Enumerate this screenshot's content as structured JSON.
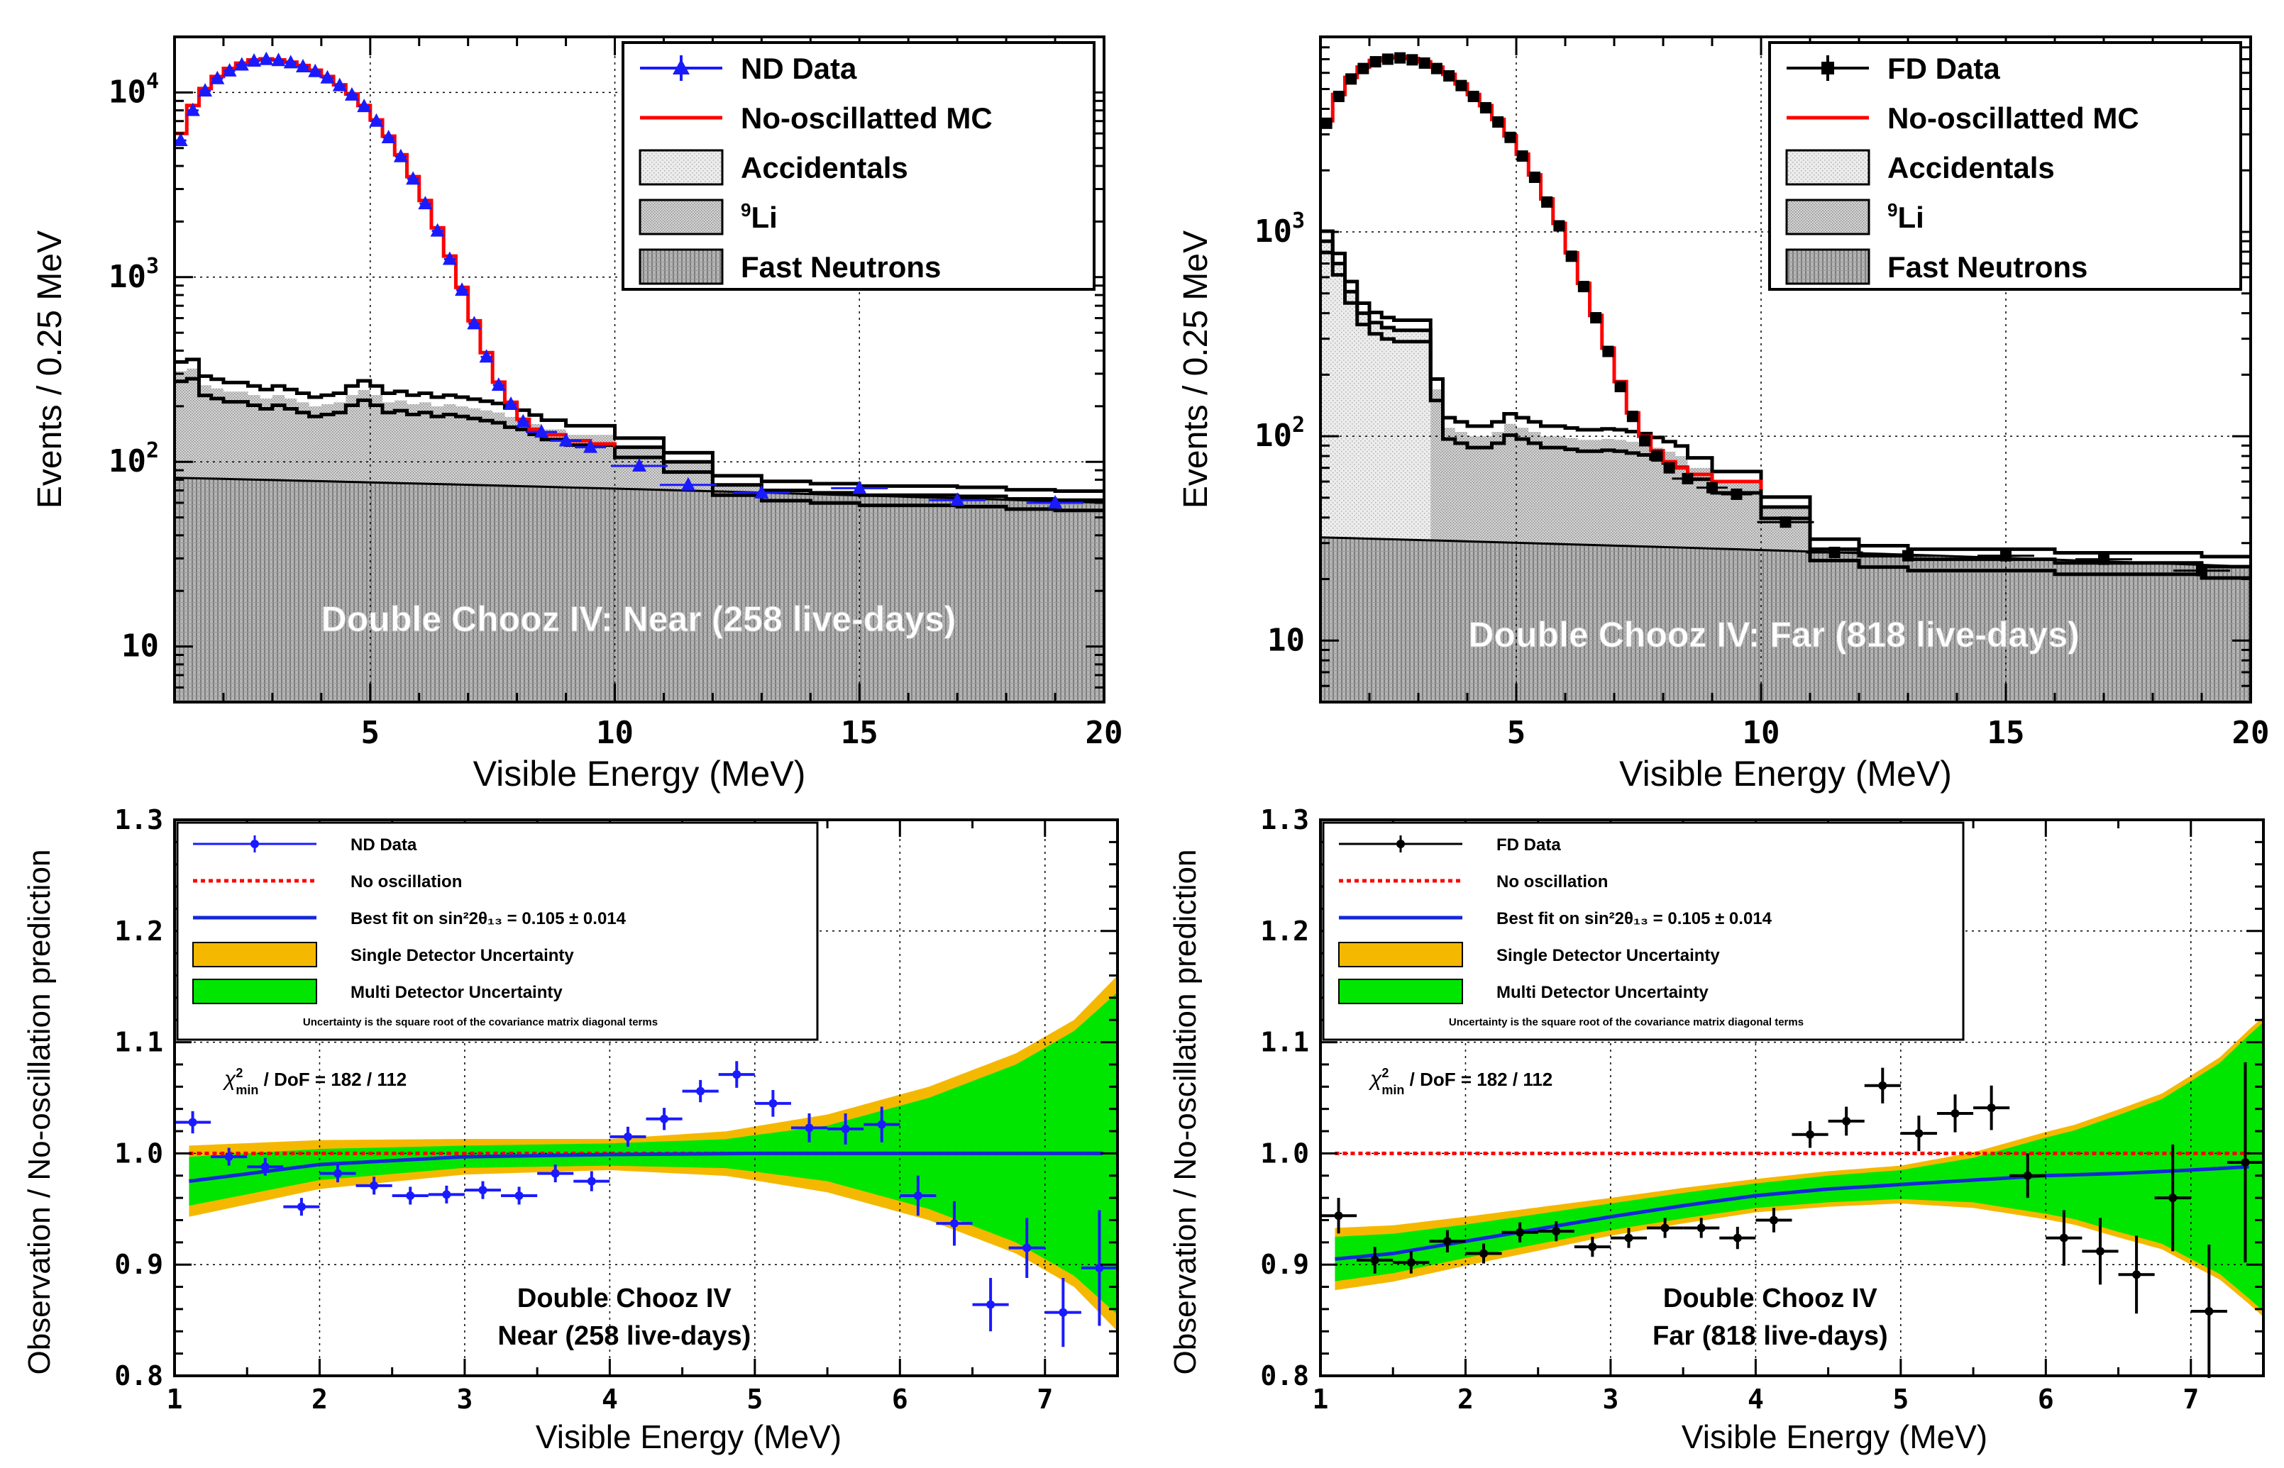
{
  "colors": {
    "nd": "#1a1aff",
    "fd": "#000000",
    "mc_red": "#ff0000",
    "fit_blue": "#1428d8",
    "single_unc": "#f5b800",
    "multi_unc": "#00e600",
    "acc_fill": "#ececec",
    "li_fill": "#c8c8c8",
    "fn_fill": "#a4a4a4",
    "grid": "#000000"
  },
  "chart_data": [
    {
      "id": "near-spectrum",
      "type": "line",
      "ylabel": "Events / 0.25 MeV",
      "xlabel": "Visible Energy (MeV)",
      "xlim": [
        1,
        20
      ],
      "ylim": [
        5,
        20000
      ],
      "log_y": true,
      "x_ticks": [
        "5",
        "10",
        "15",
        "20"
      ],
      "y_ticks": [
        "10",
        "10",
        "10",
        "10"
      ],
      "y_tick_exp": [
        "",
        "2",
        "3",
        "4"
      ],
      "annotation": "Double Chooz IV: Near (258 live-days)",
      "legend": [
        {
          "label": "ND Data",
          "kind": "data"
        },
        {
          "label": "No-oscillatted MC",
          "kind": "mc"
        },
        {
          "label": "Accidentals",
          "kind": "acc"
        },
        {
          "label": "Li",
          "sup": "9",
          "kind": "li"
        },
        {
          "label": "Fast Neutrons",
          "kind": "fn"
        }
      ],
      "fn_line": {
        "x": [
          1,
          20
        ],
        "y": [
          82,
          60
        ]
      },
      "bkg_total": {
        "x": [
          1,
          1.25,
          1.5,
          1.75,
          2,
          2.25,
          2.5,
          2.75,
          3,
          3.25,
          3.5,
          3.75,
          4,
          4.25,
          4.5,
          4.75,
          5,
          5.25,
          5.5,
          5.75,
          6,
          6.25,
          6.5,
          6.75,
          7,
          7.25,
          7.5,
          7.75,
          8,
          8.25,
          8.5,
          9,
          10,
          11,
          12,
          13,
          14,
          15,
          16,
          17,
          18,
          19,
          20
        ],
        "y": [
          310,
          320,
          260,
          250,
          240,
          240,
          230,
          220,
          230,
          220,
          210,
          200,
          205,
          210,
          230,
          245,
          230,
          210,
          215,
          205,
          210,
          200,
          205,
          200,
          195,
          190,
          185,
          175,
          170,
          160,
          150,
          140,
          120,
          100,
          75,
          70,
          68,
          66,
          66,
          65,
          63,
          62,
          61
        ]
      },
      "mc": {
        "x": [
          1,
          1.25,
          1.5,
          1.75,
          2,
          2.25,
          2.5,
          2.75,
          3,
          3.25,
          3.5,
          3.75,
          4,
          4.25,
          4.5,
          4.75,
          5,
          5.25,
          5.5,
          5.75,
          6,
          6.25,
          6.5,
          6.75,
          7,
          7.25,
          7.5,
          7.75,
          8,
          8.25,
          8.5,
          9,
          9.5,
          10
        ],
        "y": [
          6000,
          8500,
          10500,
          12200,
          13500,
          14400,
          15000,
          15200,
          15000,
          14600,
          14000,
          13200,
          12200,
          11000,
          9800,
          8500,
          7100,
          5800,
          4600,
          3500,
          2600,
          1850,
          1300,
          880,
          580,
          390,
          270,
          210,
          170,
          150,
          140,
          130,
          125,
          120
        ]
      },
      "data": {
        "x": [
          1.125,
          1.375,
          1.625,
          1.875,
          2.125,
          2.375,
          2.625,
          2.875,
          3.125,
          3.375,
          3.625,
          3.875,
          4.125,
          4.375,
          4.625,
          4.875,
          5.125,
          5.375,
          5.625,
          5.875,
          6.125,
          6.375,
          6.625,
          6.875,
          7.125,
          7.375,
          7.625,
          7.875,
          8.125,
          8.5,
          9,
          9.5,
          10.5,
          11.5,
          13,
          15,
          17,
          19
        ],
        "y": [
          5500,
          8000,
          10200,
          11900,
          13100,
          14100,
          14800,
          15100,
          14900,
          14500,
          13800,
          13000,
          12000,
          10900,
          9700,
          8400,
          7000,
          5700,
          4500,
          3400,
          2500,
          1780,
          1250,
          850,
          560,
          370,
          260,
          205,
          165,
          145,
          130,
          120,
          95,
          75,
          68,
          72,
          62,
          60
        ]
      }
    },
    {
      "id": "far-spectrum",
      "type": "line",
      "ylabel": "Events / 0.25 MeV",
      "xlabel": "Visible Energy (MeV)",
      "xlim": [
        1,
        20
      ],
      "ylim": [
        5,
        9000
      ],
      "log_y": true,
      "x_ticks": [
        "5",
        "10",
        "15",
        "20"
      ],
      "y_ticks": [
        "10",
        "10",
        "10"
      ],
      "y_tick_exp": [
        "",
        "2",
        "3"
      ],
      "annotation": "Double Chooz IV: Far (818 live-days)",
      "legend": [
        {
          "label": "FD Data",
          "kind": "data"
        },
        {
          "label": "No-oscillatted MC",
          "kind": "mc"
        },
        {
          "label": "Accidentals",
          "kind": "acc"
        },
        {
          "label": "Li",
          "sup": "9",
          "kind": "li"
        },
        {
          "label": "Fast Neutrons",
          "kind": "fn"
        }
      ],
      "fn_line": {
        "x": [
          1,
          20
        ],
        "y": [
          32,
          23
        ]
      },
      "acc_total": {
        "x": [
          1,
          1.25,
          1.5,
          1.75,
          2,
          2.25,
          2.5,
          2.75,
          3,
          3.25
        ],
        "y": [
          900,
          700,
          510,
          400,
          360,
          340,
          330,
          330,
          330,
          170
        ]
      },
      "bkg_total": {
        "x": [
          1,
          1.25,
          1.5,
          1.75,
          2,
          2.25,
          2.5,
          2.75,
          3,
          3.25,
          3.5,
          3.75,
          4,
          4.25,
          4.5,
          4.75,
          5,
          5.25,
          5.5,
          5.75,
          6,
          6.25,
          6.5,
          6.75,
          7,
          7.25,
          7.5,
          7.75,
          8,
          8.25,
          8.5,
          9,
          10,
          11,
          12,
          13,
          14,
          15,
          16,
          17,
          18,
          19,
          20
        ],
        "y": [
          900,
          700,
          510,
          400,
          360,
          340,
          330,
          330,
          330,
          170,
          110,
          105,
          100,
          100,
          105,
          115,
          110,
          105,
          100,
          100,
          98,
          96,
          96,
          97,
          96,
          94,
          92,
          88,
          84,
          80,
          70,
          60,
          45,
          28,
          26,
          25,
          25,
          25,
          24,
          24,
          24,
          23,
          23
        ]
      },
      "mc": {
        "x": [
          1,
          1.25,
          1.5,
          1.75,
          2,
          2.25,
          2.5,
          2.75,
          3,
          3.25,
          3.5,
          3.75,
          4,
          4.25,
          4.5,
          4.75,
          5,
          5.25,
          5.5,
          5.75,
          6,
          6.25,
          6.5,
          6.75,
          7,
          7.25,
          7.5,
          7.75,
          8,
          8.25,
          8.5,
          9,
          10
        ],
        "y": [
          3500,
          4700,
          5700,
          6400,
          6900,
          7100,
          7200,
          7050,
          6800,
          6400,
          5900,
          5300,
          4700,
          4150,
          3550,
          2950,
          2400,
          1900,
          1450,
          1100,
          790,
          560,
          390,
          270,
          185,
          130,
          100,
          85,
          75,
          70,
          65,
          60,
          55
        ]
      },
      "data": {
        "x": [
          1.125,
          1.375,
          1.625,
          1.875,
          2.125,
          2.375,
          2.625,
          2.875,
          3.125,
          3.375,
          3.625,
          3.875,
          4.125,
          4.375,
          4.625,
          4.875,
          5.125,
          5.375,
          5.625,
          5.875,
          6.125,
          6.375,
          6.625,
          6.875,
          7.125,
          7.375,
          7.625,
          7.875,
          8.125,
          8.5,
          9,
          9.5,
          10.5,
          11.5,
          13,
          15,
          17,
          19
        ],
        "y": [
          3400,
          4600,
          5600,
          6300,
          6800,
          7000,
          7100,
          6950,
          6700,
          6300,
          5800,
          5200,
          4600,
          4050,
          3450,
          2900,
          2350,
          1850,
          1400,
          1070,
          760,
          540,
          380,
          260,
          175,
          125,
          95,
          80,
          70,
          62,
          56,
          52,
          38,
          27,
          26,
          26,
          25,
          22
        ]
      }
    },
    {
      "id": "near-ratio",
      "type": "scatter",
      "ylabel": "Observation / No-oscillation prediction",
      "xlabel": "Visible Energy (MeV)",
      "xlim": [
        1,
        7.5
      ],
      "ylim": [
        0.8,
        1.3
      ],
      "x_ticks": [
        "1",
        "2",
        "3",
        "4",
        "5",
        "6",
        "7"
      ],
      "y_ticks": [
        "0.8",
        "0.9",
        "1.0",
        "1.1",
        "1.2",
        "1.3"
      ],
      "annotation_line1": "Double Chooz IV",
      "annotation_line2": "Near (258 live-days)",
      "chi2_label": "χ²min / DoF = 182 / 112",
      "chi2_main": "χ",
      "chi2_sup": "2",
      "chi2_sub": "min",
      "chi2_rest": " / DoF = 182 / 112",
      "legend": [
        {
          "label": "ND Data",
          "kind": "data"
        },
        {
          "label": "No oscillation",
          "kind": "noosc"
        },
        {
          "label": "Best fit on sin²2θ₁₃ = 0.105 ± 0.014",
          "kind": "fit"
        },
        {
          "label": "Single Detector Uncertainty",
          "kind": "single"
        },
        {
          "label": "Multi Detector Uncertainty",
          "kind": "multi"
        }
      ],
      "legend_note": "Uncertainty is the square root of the covariance matrix diagonal terms",
      "fit": {
        "x": [
          1.1,
          2,
          3,
          4,
          5,
          6,
          7.4
        ],
        "y": [
          0.975,
          0.99,
          0.997,
          0.999,
          1.0,
          1.0,
          1.0
        ]
      },
      "single_half": {
        "x": [
          1.1,
          2,
          3,
          4,
          4.8,
          5.5,
          6.2,
          6.8,
          7.2,
          7.5
        ],
        "y": [
          0.032,
          0.022,
          0.016,
          0.014,
          0.02,
          0.035,
          0.06,
          0.09,
          0.12,
          0.16
        ]
      },
      "multi_half": {
        "x": [
          1.1,
          2,
          3,
          4,
          4.8,
          5.5,
          6.2,
          6.8,
          7.2,
          7.5
        ],
        "y": [
          0.022,
          0.014,
          0.01,
          0.01,
          0.013,
          0.025,
          0.05,
          0.08,
          0.11,
          0.145
        ]
      },
      "points": {
        "x": [
          1.125,
          1.375,
          1.625,
          1.875,
          2.125,
          2.375,
          2.625,
          2.875,
          3.125,
          3.375,
          3.625,
          3.875,
          4.125,
          4.375,
          4.625,
          4.875,
          5.125,
          5.375,
          5.625,
          5.875,
          6.125,
          6.375,
          6.625,
          6.875,
          7.125,
          7.375
        ],
        "y": [
          1.028,
          0.997,
          0.988,
          0.952,
          0.982,
          0.971,
          0.962,
          0.963,
          0.967,
          0.962,
          0.982,
          0.975,
          1.015,
          1.031,
          1.056,
          1.071,
          1.045,
          1.023,
          1.022,
          1.026,
          0.962,
          0.937,
          0.864,
          0.915,
          0.857,
          0.897
        ],
        "err": [
          0.01,
          0.008,
          0.008,
          0.008,
          0.008,
          0.008,
          0.008,
          0.008,
          0.008,
          0.008,
          0.008,
          0.009,
          0.009,
          0.01,
          0.01,
          0.012,
          0.012,
          0.013,
          0.014,
          0.016,
          0.018,
          0.02,
          0.024,
          0.027,
          0.031,
          0.052
        ]
      }
    },
    {
      "id": "far-ratio",
      "type": "scatter",
      "ylabel": "Observation / No-oscillation prediction",
      "xlabel": "Visible Energy (MeV)",
      "xlim": [
        1,
        7.5
      ],
      "ylim": [
        0.8,
        1.3
      ],
      "x_ticks": [
        "1",
        "2",
        "3",
        "4",
        "5",
        "6",
        "7"
      ],
      "y_ticks": [
        "0.8",
        "0.9",
        "1.0",
        "1.1",
        "1.2",
        "1.3"
      ],
      "annotation_line1": "Double Chooz IV",
      "annotation_line2": "Far (818 live-days)",
      "chi2_label": "χ²min / DoF = 182 / 112",
      "chi2_main": "χ",
      "chi2_sup": "2",
      "chi2_sub": "min",
      "chi2_rest": " / DoF = 182 / 112",
      "legend": [
        {
          "label": "FD Data",
          "kind": "data"
        },
        {
          "label": "No oscillation",
          "kind": "noosc"
        },
        {
          "label": "Best fit on sin²2θ₁₃ = 0.105 ± 0.014",
          "kind": "fit"
        },
        {
          "label": "Single Detector Uncertainty",
          "kind": "single"
        },
        {
          "label": "Multi Detector Uncertainty",
          "kind": "multi"
        }
      ],
      "legend_note": "Uncertainty is the square root of the covariance matrix diagonal terms",
      "fit": {
        "x": [
          1.1,
          1.5,
          2,
          2.5,
          3,
          3.5,
          4,
          4.5,
          5,
          5.5,
          6,
          6.5,
          7,
          7.4
        ],
        "y": [
          0.905,
          0.91,
          0.921,
          0.932,
          0.943,
          0.953,
          0.962,
          0.968,
          0.972,
          0.976,
          0.98,
          0.982,
          0.985,
          0.988
        ]
      },
      "single_half": {
        "x": [
          1.1,
          2,
          3,
          4,
          5,
          5.5,
          6.2,
          6.8,
          7.2,
          7.5
        ],
        "y": [
          0.028,
          0.022,
          0.017,
          0.015,
          0.017,
          0.025,
          0.045,
          0.07,
          0.1,
          0.135
        ]
      },
      "multi_half": {
        "x": [
          1.1,
          2,
          3,
          4,
          5,
          5.5,
          6.2,
          6.8,
          7.2,
          7.5
        ],
        "y": [
          0.02,
          0.015,
          0.012,
          0.011,
          0.013,
          0.02,
          0.04,
          0.065,
          0.095,
          0.13
        ]
      },
      "points": {
        "x": [
          1.125,
          1.375,
          1.625,
          1.875,
          2.125,
          2.375,
          2.625,
          2.875,
          3.125,
          3.375,
          3.625,
          3.875,
          4.125,
          4.375,
          4.625,
          4.875,
          5.125,
          5.375,
          5.625,
          5.875,
          6.125,
          6.375,
          6.625,
          6.875,
          7.125,
          7.375
        ],
        "y": [
          0.944,
          0.904,
          0.902,
          0.921,
          0.91,
          0.929,
          0.93,
          0.916,
          0.924,
          0.933,
          0.933,
          0.924,
          0.94,
          1.017,
          1.029,
          1.061,
          1.018,
          1.036,
          1.041,
          0.98,
          0.924,
          0.912,
          0.891,
          0.96,
          0.858,
          0.992
        ],
        "err": [
          0.016,
          0.012,
          0.01,
          0.01,
          0.009,
          0.009,
          0.009,
          0.009,
          0.009,
          0.009,
          0.009,
          0.01,
          0.011,
          0.012,
          0.013,
          0.016,
          0.016,
          0.017,
          0.02,
          0.02,
          0.025,
          0.03,
          0.035,
          0.048,
          0.06,
          0.09
        ]
      }
    }
  ]
}
